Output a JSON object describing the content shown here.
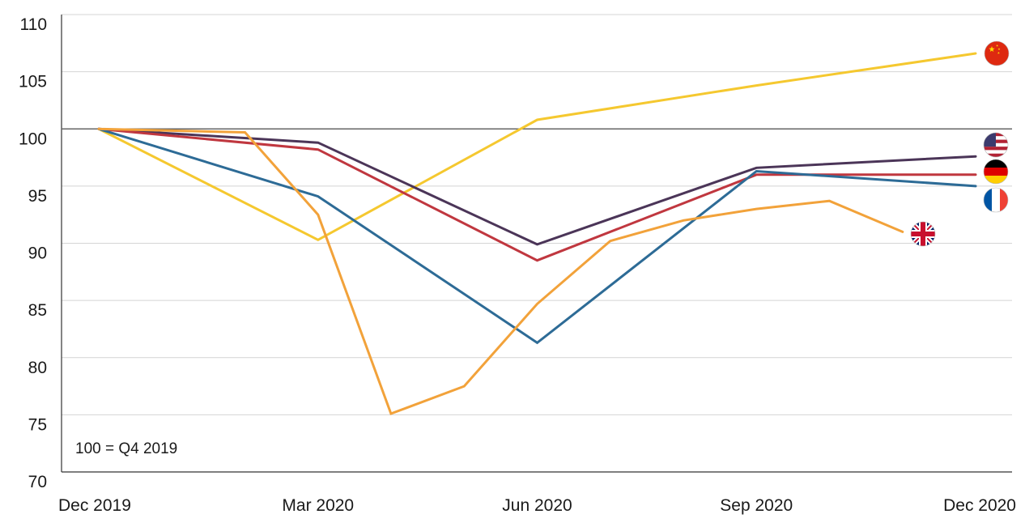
{
  "chart_data": {
    "type": "line",
    "title": "",
    "xlabel": "",
    "ylabel": "",
    "note": "100 = Q4 2019",
    "ylim": [
      70,
      110
    ],
    "yticks": [
      "70",
      "75",
      "80",
      "85",
      "90",
      "95",
      "100",
      "105",
      "110"
    ],
    "x_tick_labels": [
      "Dec 2019",
      "Mar 2020",
      "Jun 2020",
      "Sep 2020",
      "Dec 2020"
    ],
    "baseline": 100,
    "grid": true,
    "legend": "flag icons at line ends (right)",
    "series": [
      {
        "flag": "china-flag-icon",
        "color": "#f5c82f",
        "points": [
          [
            0,
            100
          ],
          [
            1,
            90.3
          ],
          [
            2,
            100.8
          ],
          [
            3,
            103.8
          ],
          [
            4,
            106.6
          ]
        ]
      },
      {
        "flag": "usa-flag-icon",
        "color": "#4b3558",
        "points": [
          [
            0,
            100
          ],
          [
            1,
            98.8
          ],
          [
            2,
            89.9
          ],
          [
            3,
            96.6
          ],
          [
            4,
            97.6
          ]
        ]
      },
      {
        "flag": "germany-flag-icon",
        "color": "#c0373f",
        "points": [
          [
            0,
            100
          ],
          [
            1,
            98.2
          ],
          [
            2,
            88.5
          ],
          [
            3,
            96
          ],
          [
            4,
            96
          ]
        ]
      },
      {
        "flag": "france-flag-icon",
        "color": "#2d6b96",
        "points": [
          [
            0,
            100
          ],
          [
            1,
            94.1
          ],
          [
            2,
            81.3
          ],
          [
            3,
            96.3
          ],
          [
            4,
            95
          ]
        ]
      },
      {
        "flag": "uk-flag-icon",
        "color": "#f2a23a",
        "points": [
          [
            0,
            100
          ],
          [
            0.667,
            99.7
          ],
          [
            1,
            92.5
          ],
          [
            1.333,
            75.1
          ],
          [
            1.667,
            77.5
          ],
          [
            2,
            84.7
          ],
          [
            2.333,
            90.2
          ],
          [
            2.667,
            92
          ],
          [
            3,
            93
          ],
          [
            3.333,
            93.7
          ],
          [
            3.667,
            91
          ]
        ]
      }
    ]
  }
}
